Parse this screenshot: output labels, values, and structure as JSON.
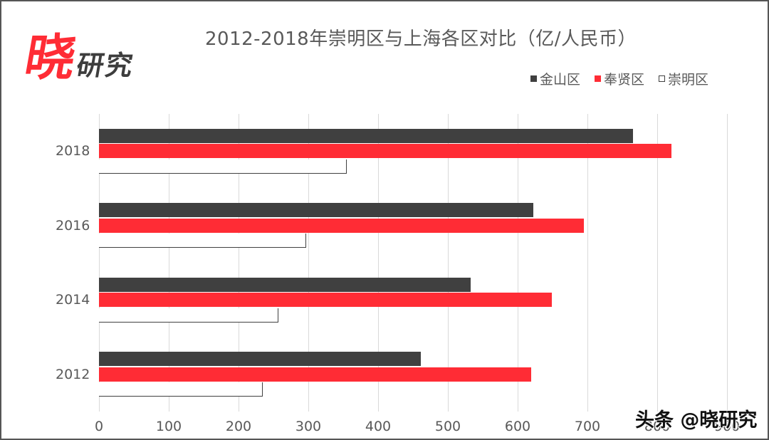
{
  "logo": {
    "main": "晓",
    "sub": "研究"
  },
  "watermark": "头条 @晓研究",
  "colors": {
    "jinshan": "#404040",
    "fengxian": "#ff2c35",
    "chongming": "#ffffff",
    "chongming_border": "#404040",
    "grid": "#d9d9d9",
    "text": "#595959"
  },
  "chart_data": {
    "type": "bar",
    "orientation": "horizontal",
    "title": "2012-2018年崇明区与上海各区对比（亿/人民币）",
    "categories": [
      "2012",
      "2014",
      "2016",
      "2018"
    ],
    "series": [
      {
        "name": "金山区",
        "values": [
          461,
          533,
          622,
          765
        ]
      },
      {
        "name": "奉贤区",
        "values": [
          619,
          649,
          695,
          820
        ]
      },
      {
        "name": "崇明区",
        "values": [
          235,
          257,
          297,
          355
        ]
      }
    ],
    "xlabel": "",
    "ylabel": "",
    "xlim": [
      0,
      900
    ],
    "x_ticks": [
      "0",
      "100",
      "200",
      "300",
      "400",
      "500",
      "600",
      "700",
      "800",
      "900"
    ],
    "grid": true,
    "legend_position": "top-right",
    "legend": [
      "金山区",
      "奉贤区",
      "崇明区"
    ]
  }
}
